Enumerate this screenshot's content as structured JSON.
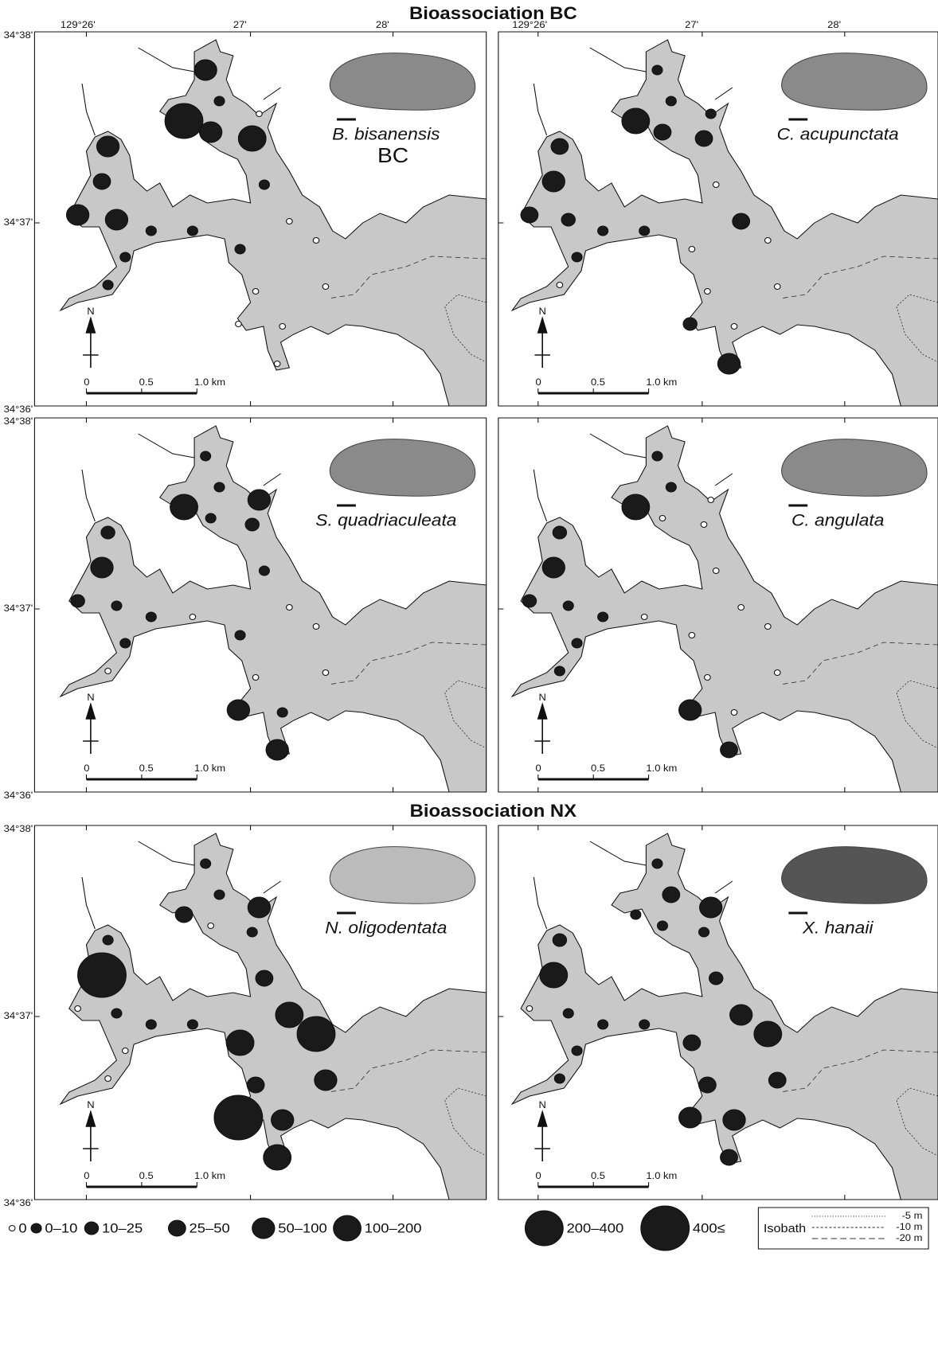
{
  "headings": [
    "Bioassociation BC",
    "Bioassociation NX"
  ],
  "longitude_labels": [
    "129°26'",
    "27'",
    "28'"
  ],
  "latitude_labels": [
    "34°38'",
    "34°37'",
    "34°36'"
  ],
  "scale_bar": [
    "0",
    "0.5",
    "1.0 km"
  ],
  "north": "N",
  "panels": [
    {
      "species": "B. bisanensis",
      "association": "BC",
      "stations": [
        4,
        1,
        6,
        4,
        5,
        0,
        4,
        3,
        1,
        4,
        4,
        1,
        1,
        0,
        1,
        1,
        0,
        1,
        0,
        0,
        0,
        0,
        0
      ]
    },
    {
      "species": "C. acupunctata",
      "stations": [
        1,
        1,
        5,
        3,
        3,
        1,
        3,
        4,
        0,
        3,
        2,
        1,
        1,
        3,
        0,
        1,
        0,
        0,
        0,
        0,
        2,
        0,
        4
      ]
    },
    {
      "species": "S. quadriaculeata",
      "stations": [
        1,
        1,
        5,
        1,
        2,
        4,
        2,
        4,
        1,
        2,
        1,
        1,
        0,
        0,
        1,
        1,
        0,
        0,
        0,
        0,
        4,
        1,
        4
      ]
    },
    {
      "species": "C. angulata",
      "stations": [
        1,
        1,
        5,
        0,
        0,
        0,
        2,
        4,
        0,
        2,
        1,
        1,
        0,
        0,
        0,
        1,
        0,
        1,
        0,
        0,
        4,
        0,
        3
      ]
    },
    {
      "species": "N. oligodentata",
      "stations": [
        1,
        1,
        3,
        0,
        1,
        4,
        1,
        7,
        3,
        0,
        1,
        1,
        1,
        5,
        5,
        0,
        6,
        0,
        3,
        4,
        7,
        4,
        5
      ]
    },
    {
      "species": "X. hanaii",
      "stations": [
        1,
        3,
        1,
        1,
        1,
        4,
        2,
        5,
        2,
        0,
        1,
        1,
        1,
        4,
        3,
        1,
        5,
        1,
        3,
        3,
        4,
        4,
        3
      ]
    }
  ],
  "legend": {
    "classes": [
      "0",
      "0–10",
      "10–25",
      "25–50",
      "50–100",
      "100–200",
      "200–400",
      "400≤"
    ],
    "isobath": {
      "title": "Isobath",
      "levels": [
        "-5 m",
        "-10 m",
        "-20 m"
      ]
    }
  }
}
